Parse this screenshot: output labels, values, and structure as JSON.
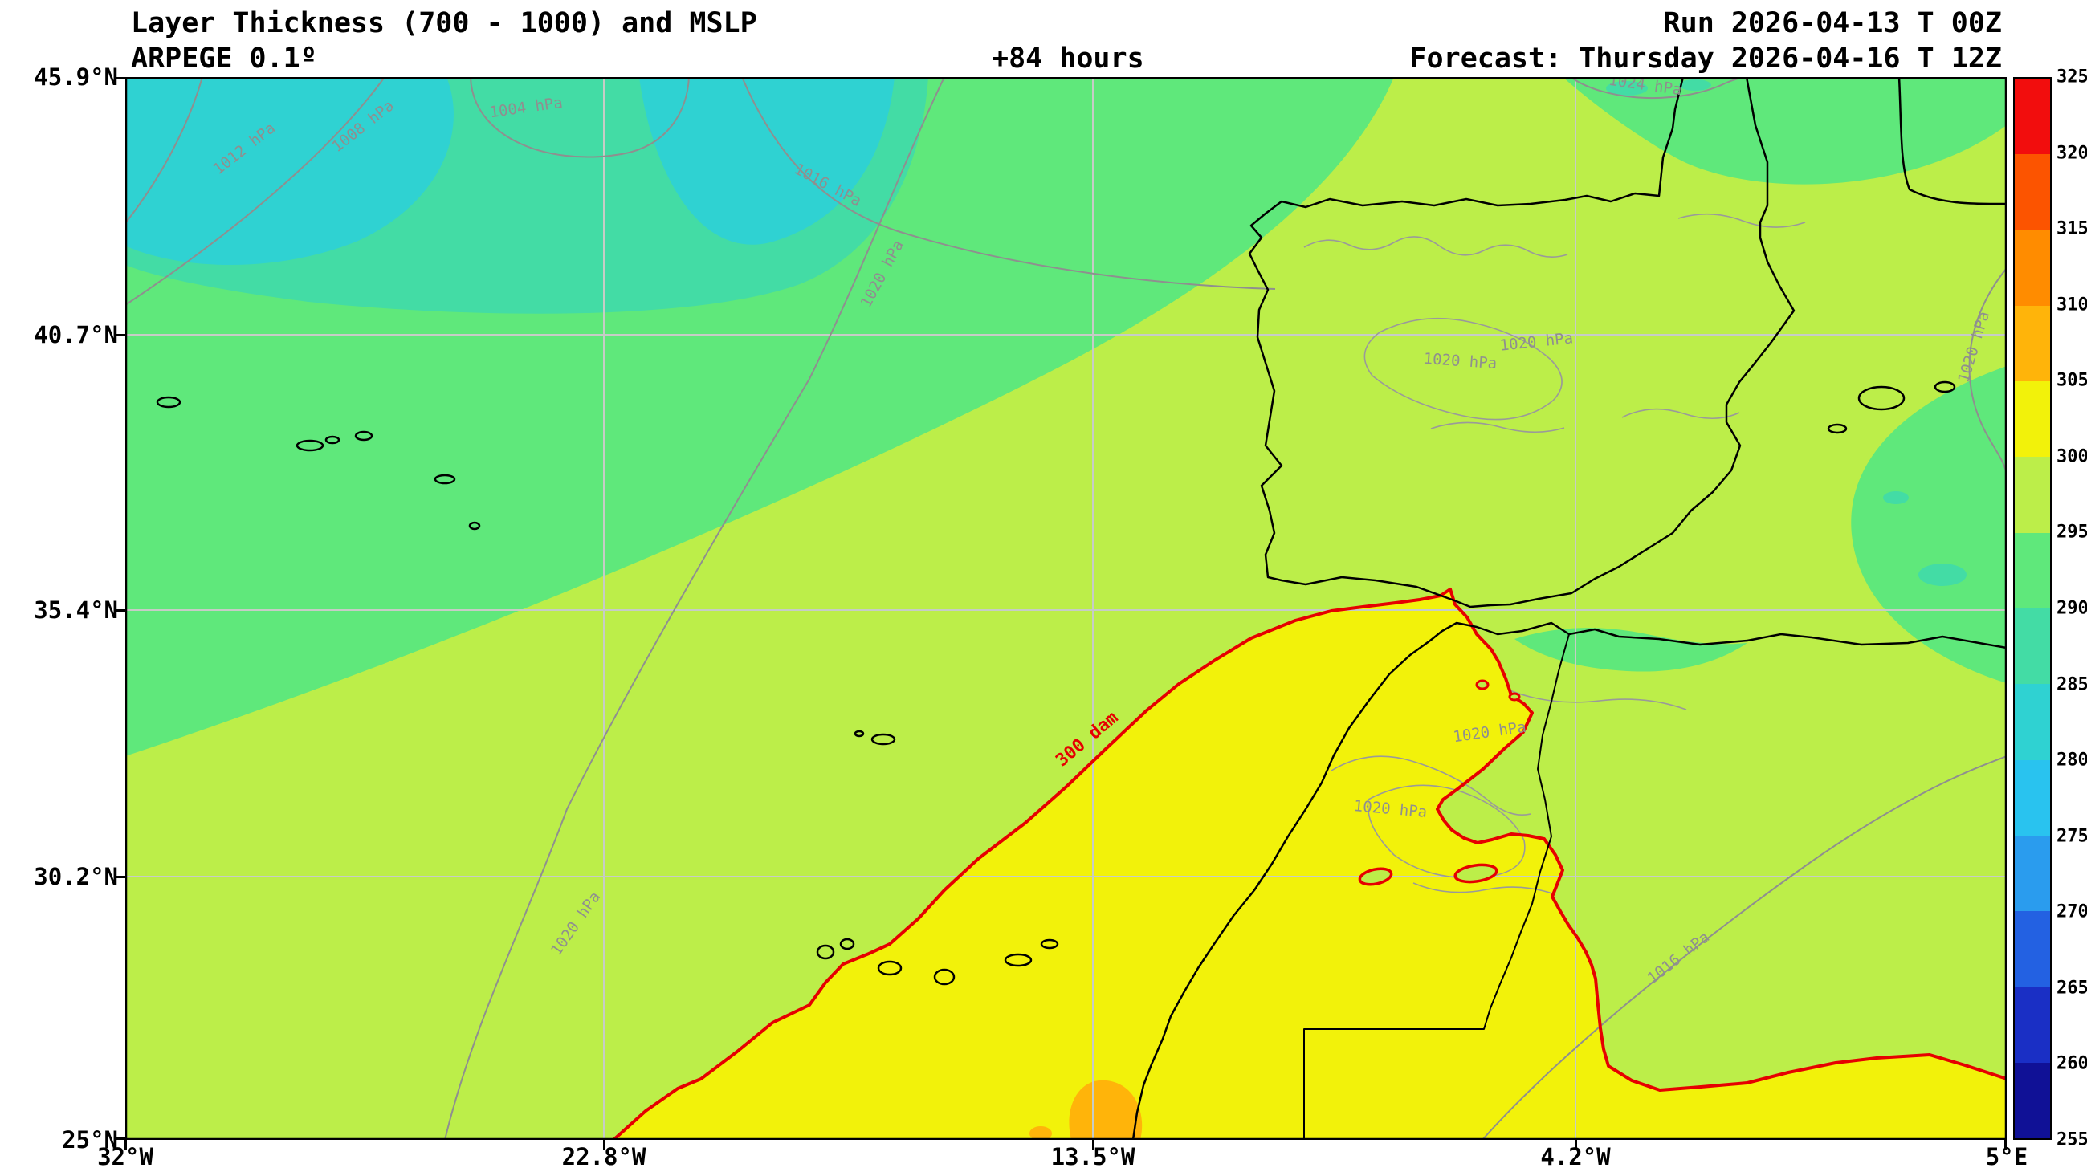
{
  "header": {
    "title": "Layer Thickness (700 - 1000) and MSLP",
    "model": "ARPEGE 0.1º",
    "lead_time": "+84 hours",
    "run": "Run 2026-04-13 T 00Z",
    "forecast": "Forecast: Thursday 2026-04-16 T 12Z"
  },
  "axes": {
    "lat": [
      "45.9°N",
      "40.7°N",
      "35.4°N",
      "30.2°N",
      "25°N"
    ],
    "lon": [
      "32°W",
      "22.8°W",
      "13.5°W",
      "4.2°W",
      "5°E"
    ]
  },
  "colorbar": {
    "tick_labels": [
      "325",
      "320",
      "315",
      "310",
      "305",
      "300",
      "295",
      "290",
      "285",
      "280",
      "275",
      "270",
      "265",
      "260",
      "255"
    ],
    "colors": [
      "#f20d0d",
      "#fc5400",
      "#ff8c00",
      "#ffb40a",
      "#f2f20a",
      "#bcee49",
      "#5fe87b",
      "#43dca5",
      "#2fd2d2",
      "#29c3ef",
      "#2a9cee",
      "#2361e2",
      "#1a2fc5",
      "#101196"
    ]
  },
  "palette": {
    "fill_280_285": "#2fd2d2",
    "fill_285_290": "#43dca5",
    "fill_290_295": "#5fe87b",
    "fill_295_300": "#bcee49",
    "fill_300_305": "#f2f20a",
    "fill_305_310": "#ffb40a",
    "contour_red": "#e60000",
    "isobar_gray": "#8f8f8f",
    "terrain_gray": "#9a9a9a",
    "coast_black": "#000000",
    "grid_gray": "#c6ccc6"
  },
  "map": {
    "isobar_labels": {
      "p1004": "1004 hPa",
      "p1008": "1008 hPa",
      "p1012": "1012 hPa",
      "p1016": "1016 hPa",
      "p1020": "1020 hPa",
      "p1024": "1024 hPa"
    },
    "thickness_label": "300 dam"
  }
}
